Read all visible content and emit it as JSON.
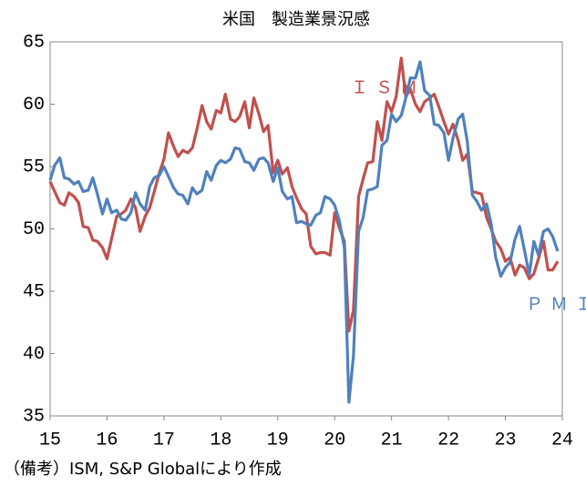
{
  "chart_data": {
    "type": "line",
    "title": "米国　製造業景況感",
    "note": "（備考）ISM, S&P Globalにより作成",
    "x": [
      15,
      15.08,
      15.17,
      15.25,
      15.33,
      15.42,
      15.5,
      15.58,
      15.67,
      15.75,
      15.83,
      15.92,
      16,
      16.08,
      16.17,
      16.25,
      16.33,
      16.42,
      16.5,
      16.58,
      16.67,
      16.75,
      16.83,
      16.92,
      17,
      17.08,
      17.17,
      17.25,
      17.33,
      17.42,
      17.5,
      17.58,
      17.67,
      17.75,
      17.83,
      17.92,
      18,
      18.08,
      18.17,
      18.25,
      18.33,
      18.42,
      18.5,
      18.58,
      18.67,
      18.75,
      18.83,
      18.92,
      19,
      19.08,
      19.17,
      19.25,
      19.33,
      19.42,
      19.5,
      19.58,
      19.67,
      19.75,
      19.83,
      19.92,
      20,
      20.08,
      20.17,
      20.25,
      20.33,
      20.42,
      20.5,
      20.58,
      20.67,
      20.75,
      20.83,
      20.92,
      21,
      21.08,
      21.17,
      21.25,
      21.33,
      21.42,
      21.5,
      21.58,
      21.67,
      21.75,
      21.83,
      21.92,
      22,
      22.08,
      22.17,
      22.25,
      22.33,
      22.42,
      22.5,
      22.58,
      22.67,
      22.75,
      22.83,
      22.92,
      23,
      23.08,
      23.17,
      23.25,
      23.33,
      23.42,
      23.5,
      23.58,
      23.67,
      23.75,
      23.83,
      23.92
    ],
    "series": [
      {
        "name": "ＩＳＭ",
        "color": "#c0504d",
        "values": [
          53.8,
          53.0,
          52.1,
          51.9,
          52.9,
          52.6,
          52.1,
          50.2,
          50.1,
          49.1,
          49.0,
          48.5,
          47.6,
          49.2,
          51.0,
          51.2,
          51.5,
          52.4,
          51.7,
          49.8,
          51.0,
          51.7,
          53.0,
          54.5,
          55.6,
          57.7,
          56.6,
          55.8,
          56.3,
          56.1,
          56.5,
          58.0,
          59.9,
          58.6,
          58.0,
          59.5,
          59.3,
          60.8,
          58.8,
          58.6,
          59.0,
          60.2,
          58.1,
          60.5,
          59.2,
          57.8,
          58.3,
          54.5,
          55.5,
          54.4,
          54.9,
          53.4,
          52.5,
          51.6,
          51.2,
          48.6,
          48.0,
          48.1,
          48.1,
          47.9,
          51.3,
          50.1,
          49.0,
          41.8,
          43.5,
          52.6,
          54.0,
          55.3,
          55.4,
          58.6,
          57.1,
          60.2,
          59.4,
          60.6,
          63.7,
          60.6,
          61.2,
          60.0,
          59.4,
          60.2,
          60.5,
          60.8,
          59.8,
          58.6,
          57.6,
          58.4,
          57.1,
          55.5,
          56.0,
          53.0,
          52.9,
          52.8,
          50.9,
          50.0,
          49.0,
          48.4,
          47.4,
          47.7,
          46.3,
          47.1,
          46.9,
          46.0,
          46.4,
          47.6,
          49.0,
          46.7,
          46.7,
          47.4
        ]
      },
      {
        "name": "ＰＭＩ",
        "color": "#4f81bd",
        "values": [
          53.9,
          55.1,
          55.7,
          54.1,
          54.0,
          53.6,
          53.8,
          53.0,
          53.1,
          54.1,
          52.8,
          51.2,
          52.4,
          51.3,
          51.5,
          50.8,
          50.7,
          51.3,
          52.9,
          52.0,
          51.5,
          53.4,
          54.1,
          54.3,
          55.0,
          54.2,
          53.3,
          52.8,
          52.7,
          52.0,
          53.3,
          52.8,
          53.1,
          54.6,
          53.9,
          55.1,
          55.5,
          55.3,
          55.6,
          56.5,
          56.4,
          55.4,
          55.3,
          54.7,
          55.6,
          55.7,
          55.3,
          53.8,
          54.9,
          53.0,
          52.4,
          52.6,
          50.5,
          50.6,
          50.4,
          50.3,
          51.1,
          51.3,
          52.6,
          52.4,
          51.9,
          50.7,
          48.5,
          36.1,
          39.8,
          49.8,
          50.9,
          53.1,
          53.2,
          53.4,
          56.7,
          57.1,
          59.2,
          58.6,
          59.1,
          60.5,
          62.1,
          62.1,
          63.4,
          61.1,
          60.7,
          58.4,
          58.3,
          57.7,
          55.5,
          57.3,
          58.8,
          59.2,
          57.0,
          52.7,
          52.2,
          51.5,
          52.0,
          50.4,
          47.7,
          46.2,
          46.9,
          47.3,
          49.2,
          50.2,
          48.4,
          46.3,
          49.0,
          47.9,
          49.8,
          50.0,
          49.4,
          48.2
        ]
      }
    ],
    "xlim": [
      15,
      24
    ],
    "xticks": [
      15,
      16,
      17,
      18,
      19,
      20,
      21,
      22,
      23,
      24
    ],
    "ylim": [
      35,
      65
    ],
    "yticks": [
      35,
      40,
      45,
      50,
      55,
      60,
      65
    ],
    "grid": false
  }
}
